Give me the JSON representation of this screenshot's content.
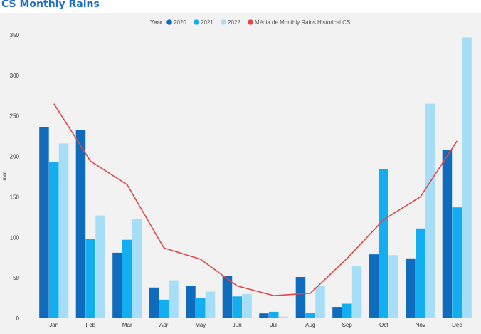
{
  "page": {
    "title": "CS Monthly Rains"
  },
  "legend": {
    "title": "Year"
  },
  "colors": {
    "series_2020": "#0f6cbd",
    "series_2021": "#12aef0",
    "series_2022": "#a6def8",
    "average_line": "#e84444",
    "panel_bg": "#f2f2f2",
    "title": "#1f6fc5"
  },
  "chart_data": {
    "type": "bar",
    "title": "CS Monthly Rains",
    "xlabel": "",
    "ylabel": "mm",
    "ylim": [
      0,
      350
    ],
    "yticks": [
      0,
      50,
      100,
      150,
      200,
      250,
      300,
      350
    ],
    "grid": false,
    "legend_position": "top-center",
    "categories": [
      "Jan",
      "Feb",
      "Mar",
      "Apr",
      "May",
      "Jun",
      "Jul",
      "Aug",
      "Sep",
      "Oct",
      "Nov",
      "Dec"
    ],
    "series": [
      {
        "name": "2020",
        "type": "bar",
        "values": [
          236,
          233,
          81,
          38,
          40,
          52,
          6,
          51,
          14,
          79,
          74,
          208
        ]
      },
      {
        "name": "2021",
        "type": "bar",
        "values": [
          193,
          98,
          97,
          23,
          25,
          27,
          8,
          7,
          18,
          184,
          111,
          137
        ]
      },
      {
        "name": "2022",
        "type": "bar",
        "values": [
          216,
          127,
          123,
          47,
          33,
          30,
          2,
          40,
          65,
          78,
          265,
          347
        ]
      },
      {
        "name": "Média de Monthly Rains Historical CS",
        "type": "line",
        "values": [
          265,
          194,
          165,
          87,
          73,
          40,
          28,
          31,
          74,
          122,
          150,
          219
        ]
      }
    ]
  }
}
